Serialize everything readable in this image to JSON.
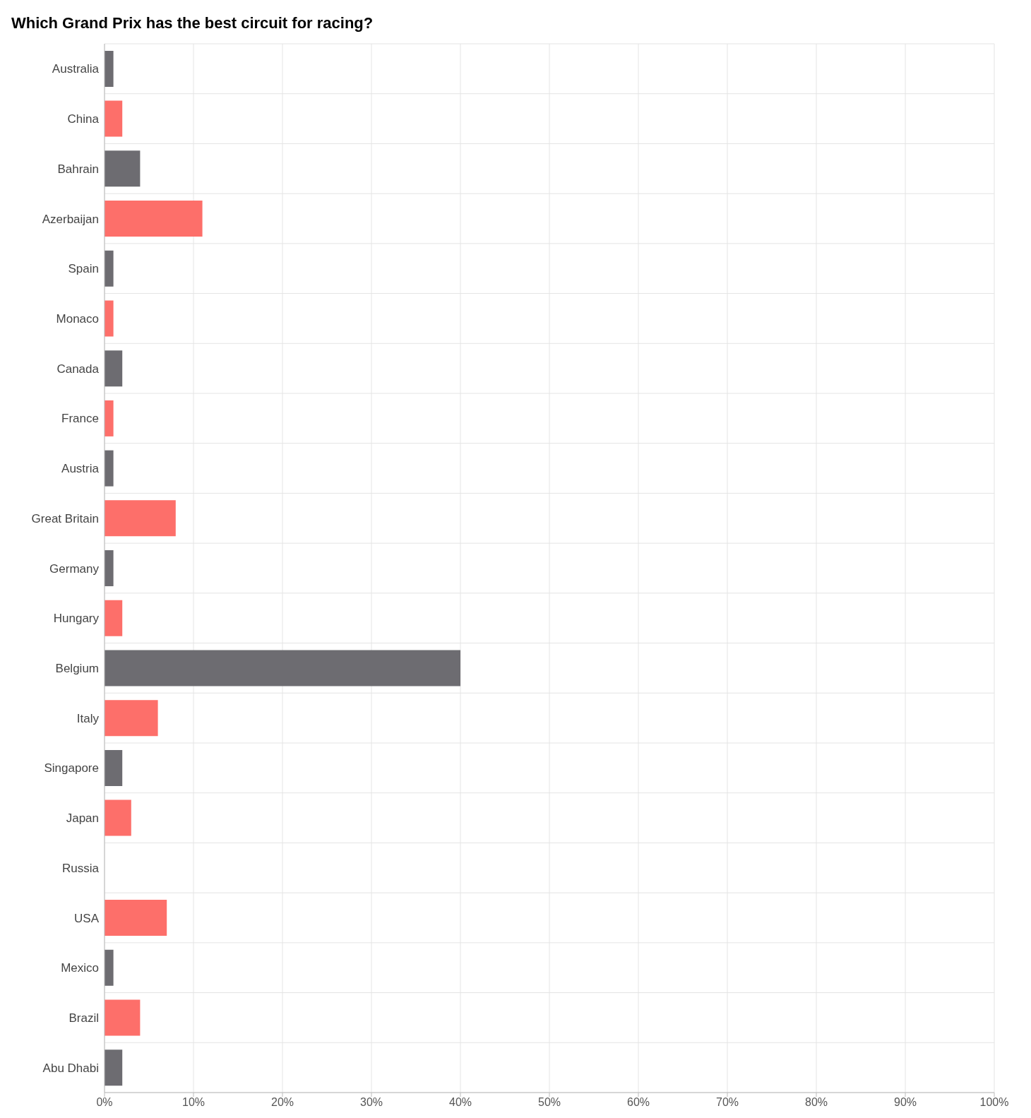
{
  "chart_data": {
    "type": "bar",
    "orientation": "horizontal",
    "title": "Which Grand Prix has the best circuit for racing?",
    "categories": [
      "Australia",
      "China",
      "Bahrain",
      "Azerbaijan",
      "Spain",
      "Monaco",
      "Canada",
      "France",
      "Austria",
      "Great Britain",
      "Germany",
      "Hungary",
      "Belgium",
      "Italy",
      "Singapore",
      "Japan",
      "Russia",
      "USA",
      "Mexico",
      "Brazil",
      "Abu Dhabi"
    ],
    "values": [
      1,
      2,
      4,
      11,
      1,
      1,
      2,
      1,
      1,
      8,
      1,
      2,
      40,
      6,
      2,
      3,
      0,
      7,
      1,
      4,
      2
    ],
    "colors": [
      "#6d6c71",
      "#fd6f6a",
      "#6d6c71",
      "#fd6f6a",
      "#6d6c71",
      "#fd6f6a",
      "#6d6c71",
      "#fd6f6a",
      "#6d6c71",
      "#fd6f6a",
      "#6d6c71",
      "#fd6f6a",
      "#6d6c71",
      "#fd6f6a",
      "#6d6c71",
      "#fd6f6a",
      "#6d6c71",
      "#fd6f6a",
      "#6d6c71",
      "#fd6f6a",
      "#6d6c71"
    ],
    "xlim": [
      0,
      100
    ],
    "xticks": [
      {
        "value": 0,
        "label": "0%"
      },
      {
        "value": 10,
        "label": "10%"
      },
      {
        "value": 20,
        "label": "20%"
      },
      {
        "value": 30,
        "label": "30%"
      },
      {
        "value": 40,
        "label": "40%"
      },
      {
        "value": 50,
        "label": "50%"
      },
      {
        "value": 60,
        "label": "60%"
      },
      {
        "value": 70,
        "label": "70%"
      },
      {
        "value": 80,
        "label": "80%"
      },
      {
        "value": 90,
        "label": "90%"
      },
      {
        "value": 100,
        "label": "100%"
      }
    ],
    "grid": true
  }
}
